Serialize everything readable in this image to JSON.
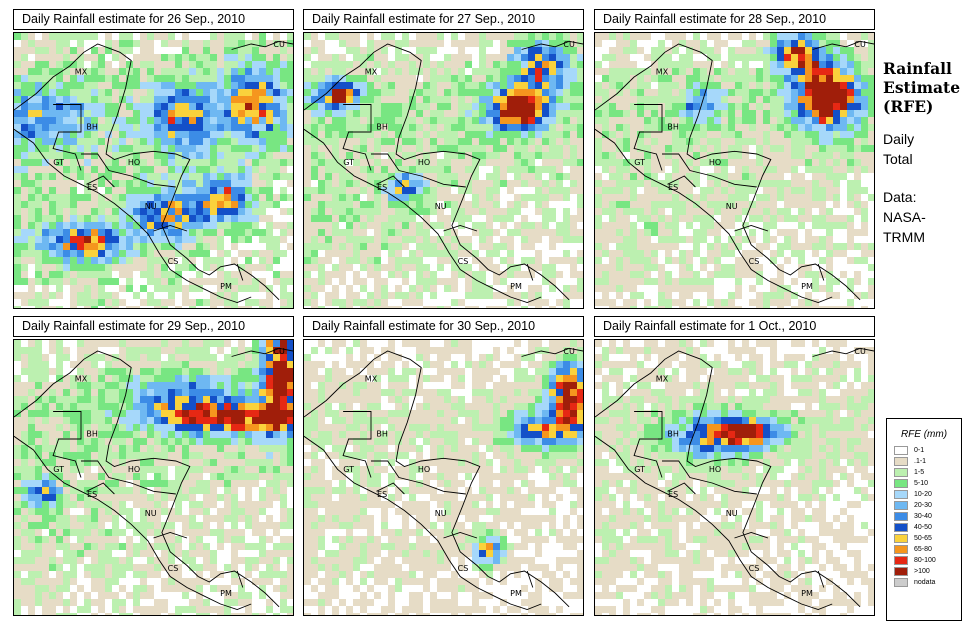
{
  "panels": [
    {
      "title": "Daily Rainfall estimate for  26 Sep., 2010",
      "seed": 11,
      "wet": 0.95,
      "storms": [
        [
          0.1,
          0.3,
          0.15,
          0.1,
          4
        ],
        [
          0.6,
          0.3,
          0.1,
          0.12,
          6
        ],
        [
          0.85,
          0.25,
          0.1,
          0.12,
          7
        ],
        [
          0.25,
          0.75,
          0.14,
          0.06,
          8
        ],
        [
          0.55,
          0.65,
          0.12,
          0.08,
          7
        ],
        [
          0.75,
          0.6,
          0.1,
          0.08,
          7
        ]
      ]
    },
    {
      "title": "Daily Rainfall estimate for  27 Sep., 2010",
      "seed": 23,
      "wet": 0.8,
      "storms": [
        [
          0.76,
          0.27,
          0.1,
          0.07,
          11
        ],
        [
          0.12,
          0.22,
          0.08,
          0.05,
          8
        ],
        [
          0.36,
          0.55,
          0.06,
          0.05,
          6
        ],
        [
          0.85,
          0.12,
          0.1,
          0.1,
          7
        ]
      ]
    },
    {
      "title": "Daily Rainfall estimate for  28 Sep., 2010",
      "seed": 37,
      "wet": 0.75,
      "storms": [
        [
          0.83,
          0.22,
          0.11,
          0.11,
          12
        ],
        [
          0.72,
          0.07,
          0.08,
          0.07,
          9
        ],
        [
          0.38,
          0.25,
          0.07,
          0.06,
          5
        ]
      ]
    },
    {
      "title": "Daily Rainfall estimate for  29 Sep., 2010",
      "seed": 41,
      "wet": 0.8,
      "storms": [
        [
          0.78,
          0.28,
          0.24,
          0.05,
          9
        ],
        [
          0.95,
          0.12,
          0.06,
          0.18,
          12
        ],
        [
          0.1,
          0.55,
          0.06,
          0.05,
          6
        ],
        [
          0.6,
          0.2,
          0.2,
          0.08,
          5
        ]
      ]
    },
    {
      "title": "Daily Rainfall estimate for  30 Sep., 2010",
      "seed": 53,
      "wet": 0.6,
      "storms": [
        [
          0.95,
          0.2,
          0.07,
          0.12,
          11
        ],
        [
          0.66,
          0.75,
          0.05,
          0.05,
          8
        ],
        [
          0.85,
          0.32,
          0.12,
          0.06,
          6
        ]
      ]
    },
    {
      "title": "Daily Rainfall estimate for  1 Oct., 2010",
      "seed": 67,
      "wet": 0.62,
      "storms": [
        [
          0.55,
          0.33,
          0.12,
          0.05,
          9
        ],
        [
          0.4,
          0.35,
          0.15,
          0.08,
          5
        ]
      ]
    }
  ],
  "countries": [
    {
      "code": "MX",
      "fx": 0.24,
      "fy": 0.15
    },
    {
      "code": "CU",
      "fx": 0.95,
      "fy": 0.05
    },
    {
      "code": "BH",
      "fx": 0.28,
      "fy": 0.35
    },
    {
      "code": "GT",
      "fx": 0.16,
      "fy": 0.48
    },
    {
      "code": "HO",
      "fx": 0.43,
      "fy": 0.48
    },
    {
      "code": "ES",
      "fx": 0.28,
      "fy": 0.57
    },
    {
      "code": "NU",
      "fx": 0.49,
      "fy": 0.64
    },
    {
      "code": "CS",
      "fx": 0.57,
      "fy": 0.84
    },
    {
      "code": "PM",
      "fx": 0.76,
      "fy": 0.93
    }
  ],
  "side": {
    "title_line1": "Rainfall",
    "title_line2": "Estimate",
    "title_line3": "(RFE)",
    "daily": "Daily",
    "total": "Total",
    "data_label": "Data:",
    "data_src1": "NASA-",
    "data_src2": "TRMM"
  },
  "legend": {
    "title": "RFE (mm)",
    "items": [
      {
        "label": "0-1",
        "color": "#ffffff"
      },
      {
        "label": ".1-1",
        "color": "#e6dcc6"
      },
      {
        "label": "1-5",
        "color": "#bcf0b0"
      },
      {
        "label": "5-10",
        "color": "#78e682"
      },
      {
        "label": "10-20",
        "color": "#a6d8fa"
      },
      {
        "label": "20-30",
        "color": "#6eb8f2"
      },
      {
        "label": "30-40",
        "color": "#3c8ce6"
      },
      {
        "label": "40-50",
        "color": "#1450c8"
      },
      {
        "label": "50-65",
        "color": "#fad23c"
      },
      {
        "label": "65-80",
        "color": "#f5961e"
      },
      {
        "label": "80-100",
        "color": "#e62814"
      },
      {
        "label": ">100",
        "color": "#a01e0a"
      },
      {
        "label": "nodata",
        "color": "#cccccc"
      }
    ]
  }
}
